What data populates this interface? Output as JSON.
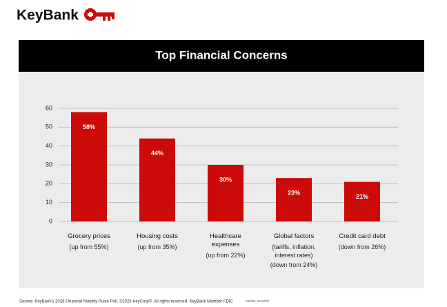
{
  "brand": "KeyBank",
  "chart_data": {
    "type": "bar",
    "title": "Top Financial Concerns",
    "categories": [
      "Grocery prices",
      "Housing costs",
      "Healthcare expenses",
      "Global factors",
      "Credit card debt"
    ],
    "notes": [
      [
        "(up from 55%)"
      ],
      [
        "(up from 35%)"
      ],
      [
        "(up from 22%)"
      ],
      [
        "(tariffs, inflation, interest rates)",
        "(down from 24%)"
      ],
      [
        "(down from 26%)"
      ]
    ],
    "values": [
      58,
      44,
      30,
      23,
      21
    ],
    "value_labels": [
      "58%",
      "44%",
      "30%",
      "23%",
      "21%"
    ],
    "color": "#cc0a0a",
    "ylim": [
      0,
      60
    ],
    "yticks": [
      0,
      10,
      20,
      30,
      40,
      50,
      60
    ],
    "grid": true
  },
  "footer": {
    "source": "Source: KeyBank's 2026 Financial Mobility Pulse Poll. ©2026 KeyCorp®. All rights reserved. KeyBank Member FDIC",
    "code": "260331-4132078"
  }
}
